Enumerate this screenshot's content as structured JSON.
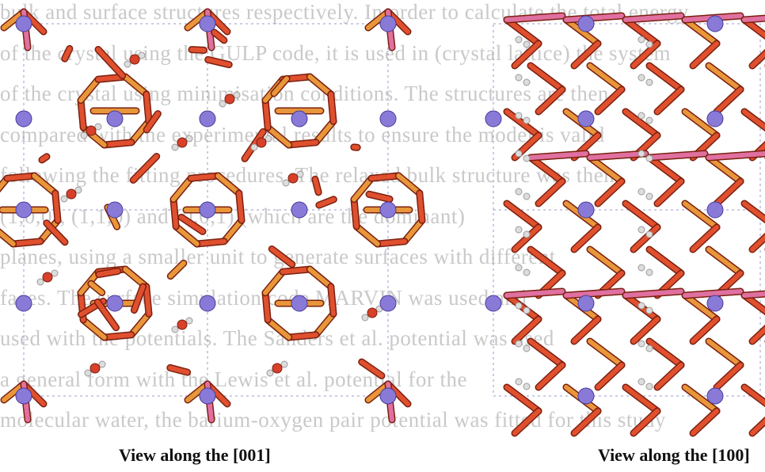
{
  "background_text": [
    "bulk and surface structures respectively. In order to calculate the total energy",
    "of the crystal using the GULP code, it is used in (crystal lattice) the system",
    "of the crystal using minimisation conditions. The structures are then",
    "compared with the experimental results to ensure the model is valid",
    "following the fitting procedures. The relaxed bulk structure was then",
    "(1,0,0), (1,1,0) and (0,0,1) (which are the dominant)",
    "planes, using a smaller unit to generate surfaces with different",
    "faces. The surface simulation code MARVIN was used and",
    "used with the potentials. The Sanders et al. potential was used",
    "a general form with the Lewis et al. potential for the",
    "molecular water, the barium-oxygen pair potential was fitted for this study"
  ],
  "figure": {
    "captions": [
      "View along the [001]",
      "View along the [100]"
    ]
  }
}
